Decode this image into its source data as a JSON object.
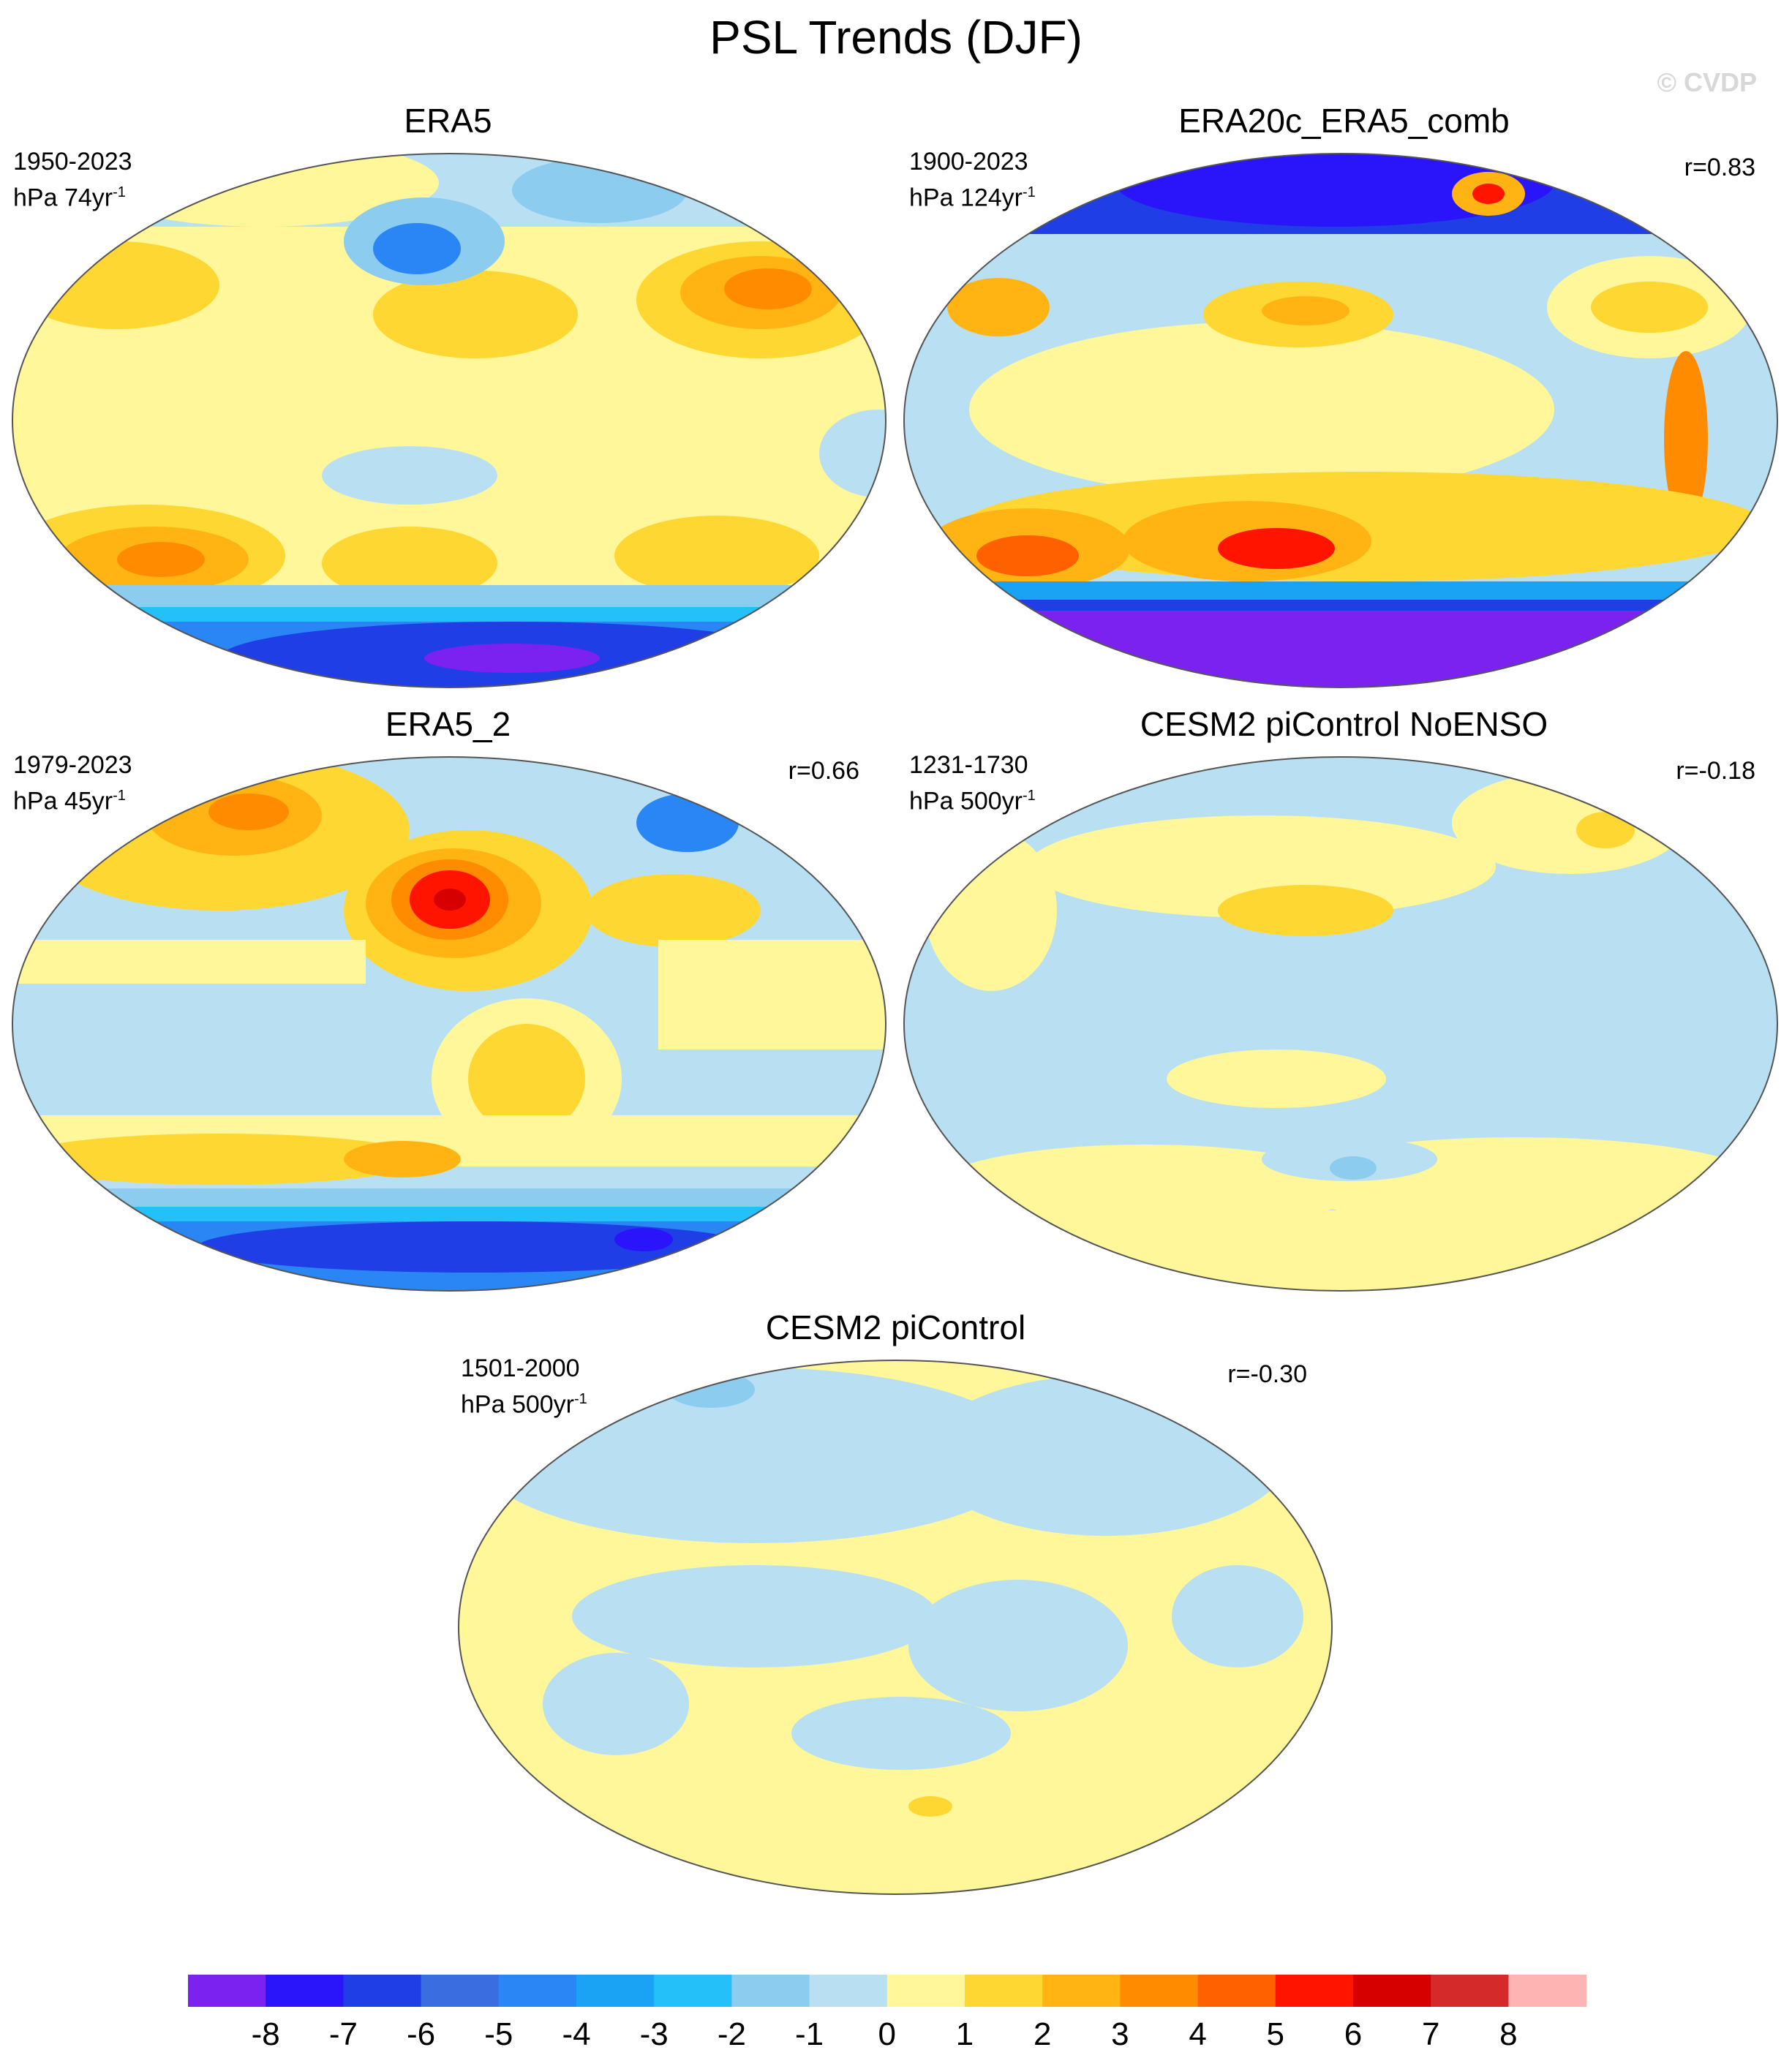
{
  "title": "PSL Trends (DJF)",
  "watermark": "© CVDP",
  "panels": [
    {
      "title": "ERA5",
      "period": "1950-2023",
      "units": "hPa 74yr",
      "exponent": "-1",
      "corr": ""
    },
    {
      "title": "ERA20c_ERA5_comb",
      "period": "1900-2023",
      "units": "hPa 124yr",
      "exponent": "-1",
      "corr": "r=0.83"
    },
    {
      "title": "ERA5_2",
      "period": "1979-2023",
      "units": "hPa 45yr",
      "exponent": "-1",
      "corr": "r=0.66"
    },
    {
      "title": "CESM2 piControl NoENSO",
      "period": "1231-1730",
      "units": "hPa 500yr",
      "exponent": "-1",
      "corr": "r=-0.18"
    },
    {
      "title": "CESM2 piControl",
      "period": "1501-2000",
      "units": "hPa 500yr",
      "exponent": "-1",
      "corr": "r=-0.30"
    }
  ],
  "colorbar": {
    "labels": [
      "-8",
      "-7",
      "-6",
      "-5",
      "-4",
      "-3",
      "-2",
      "-1",
      "0",
      "1",
      "2",
      "3",
      "4",
      "5",
      "6",
      "7",
      "8"
    ],
    "colors": [
      "#7b22f0",
      "#2a14fa",
      "#1f3ee6",
      "#3a6ee0",
      "#2a86f5",
      "#1aa2f5",
      "#23c0f9",
      "#8cccee",
      "#b9e0f2",
      "#fff799",
      "#ffd733",
      "#ffb414",
      "#ff8c00",
      "#ff6000",
      "#ff1400",
      "#d70000",
      "#d42a2a",
      "#ffb4b4"
    ]
  }
}
